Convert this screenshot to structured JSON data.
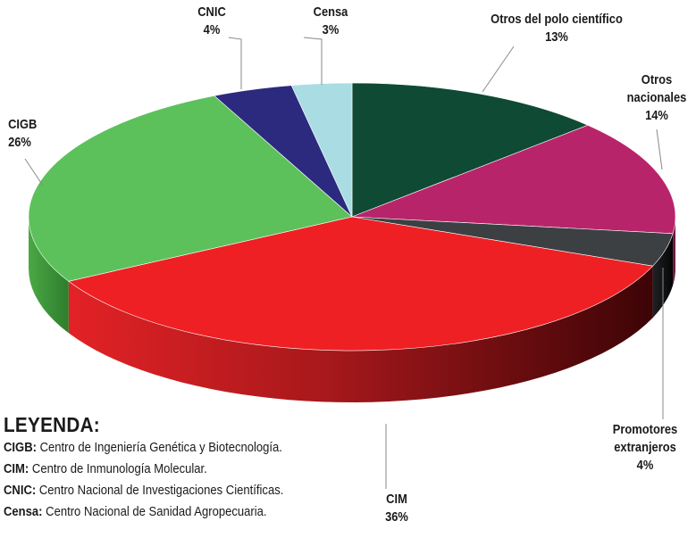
{
  "chart_data": {
    "type": "pie",
    "slices": [
      {
        "label": "Otros del polo científico",
        "value": 13,
        "value_label": "13%",
        "color": "#0e4a34"
      },
      {
        "label": "Otros nacionales",
        "value": 14,
        "value_label": "14%",
        "color": "#b8246a"
      },
      {
        "label": "Promotores extranjeros",
        "value": 4,
        "value_label": "4%",
        "color": "#3d4043"
      },
      {
        "label": "CIM",
        "value": 36,
        "value_label": "36%",
        "color": "#ee2024"
      },
      {
        "label": "CIGB",
        "value": 26,
        "value_label": "26%",
        "color": "#5cc15a"
      },
      {
        "label": "CNIC",
        "value": 4,
        "value_label": "4%",
        "color": "#2c2a7e"
      },
      {
        "label": "Censa",
        "value": 3,
        "value_label": "3%",
        "color": "#a9dde3"
      }
    ],
    "legend": {
      "title": "LEYENDA:",
      "entries": [
        {
          "abbr": "CIGB:",
          "text": " Centro de Ingeniería Genética y Biotecnología."
        },
        {
          "abbr": "CIM:",
          "text": " Centro de Inmunología Molecular."
        },
        {
          "abbr": "CNIC:",
          "text": " Centro Nacional de Investigaciones Científicas."
        },
        {
          "abbr": "Censa:",
          "text": " Centro Nacional de Sanidad Agropecuaria."
        }
      ]
    },
    "style": "3d-pie"
  }
}
